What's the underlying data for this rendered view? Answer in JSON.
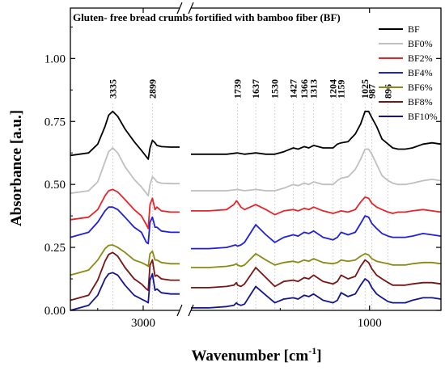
{
  "chart_data": {
    "type": "line",
    "title": "Gluten- free bread crumbs fortified with bamboo fiber (BF)",
    "xlabel": "Wavenumber [cm",
    "xlabel_sup": "-1",
    "xlabel_end": "]",
    "ylabel": "Absorbance [a.u.]",
    "ylim": [
      0,
      1.2
    ],
    "y_ticks": [
      0.0,
      0.25,
      0.5,
      0.75,
      1.0
    ],
    "y_tick_labels": [
      "0.00",
      "0.25",
      "0.50",
      "0.75",
      "1.00"
    ],
    "x_reversed": true,
    "x_segments": [
      [
        3800,
        2600
      ],
      [
        2000,
        600
      ]
    ],
    "x_break_between": [
      2600,
      2000
    ],
    "x_ticks": [
      3000,
      1000
    ],
    "x_tick_labels": [
      "3000",
      "1000"
    ],
    "peaks": [
      {
        "x": 3335,
        "label": "3335"
      },
      {
        "x": 2899,
        "label": "2899"
      },
      {
        "x": 1739,
        "label": "1739"
      },
      {
        "x": 1637,
        "label": "1637"
      },
      {
        "x": 1530,
        "label": "1530"
      },
      {
        "x": 1427,
        "label": "1427"
      },
      {
        "x": 1366,
        "label": "1366"
      },
      {
        "x": 1313,
        "label": "1313"
      },
      {
        "x": 1204,
        "label": "1204"
      },
      {
        "x": 1159,
        "label": "1159"
      },
      {
        "x": 1025,
        "label": "1025"
      },
      {
        "x": 987,
        "label": "987"
      },
      {
        "x": 896,
        "label": "896"
      }
    ],
    "series": [
      {
        "name": "BF",
        "color": "#000000",
        "baseline": 0.62,
        "offset2": 0.625,
        "x": [
          3800,
          3600,
          3500,
          3420,
          3380,
          3335,
          3280,
          3200,
          3100,
          3020,
          2965,
          2945,
          2925,
          2899,
          2870,
          2850,
          2800,
          2700,
          2600,
          2000,
          1900,
          1800,
          1739,
          1700,
          1637,
          1580,
          1530,
          1480,
          1427,
          1400,
          1366,
          1340,
          1313,
          1260,
          1204,
          1180,
          1159,
          1120,
          1080,
          1050,
          1025,
          1005,
          987,
          960,
          930,
          896,
          870,
          840,
          800,
          760,
          700,
          650,
          600
        ],
        "y": [
          0.615,
          0.625,
          0.66,
          0.73,
          0.775,
          0.79,
          0.77,
          0.72,
          0.67,
          0.635,
          0.61,
          0.6,
          0.645,
          0.675,
          0.665,
          0.655,
          0.65,
          0.648,
          0.648,
          0.62,
          0.62,
          0.62,
          0.625,
          0.62,
          0.625,
          0.62,
          0.62,
          0.63,
          0.645,
          0.64,
          0.65,
          0.645,
          0.655,
          0.645,
          0.645,
          0.66,
          0.665,
          0.67,
          0.7,
          0.74,
          0.79,
          0.79,
          0.765,
          0.73,
          0.68,
          0.66,
          0.645,
          0.64,
          0.64,
          0.645,
          0.66,
          0.665,
          0.66
        ]
      },
      {
        "name": "BF0%",
        "color": "#bfbfbf",
        "baseline": 0.47,
        "offset2": 0.475,
        "x": [
          3800,
          3600,
          3500,
          3420,
          3380,
          3335,
          3280,
          3200,
          3100,
          3020,
          2965,
          2945,
          2925,
          2899,
          2870,
          2850,
          2800,
          2700,
          2600,
          2000,
          1900,
          1800,
          1739,
          1700,
          1637,
          1580,
          1530,
          1480,
          1427,
          1400,
          1366,
          1340,
          1313,
          1260,
          1204,
          1180,
          1159,
          1120,
          1080,
          1050,
          1025,
          1005,
          987,
          960,
          930,
          896,
          870,
          840,
          800,
          760,
          700,
          650,
          600
        ],
        "y": [
          0.465,
          0.475,
          0.51,
          0.59,
          0.63,
          0.645,
          0.625,
          0.57,
          0.52,
          0.49,
          0.465,
          0.455,
          0.5,
          0.53,
          0.52,
          0.51,
          0.505,
          0.503,
          0.503,
          0.475,
          0.475,
          0.475,
          0.48,
          0.475,
          0.48,
          0.475,
          0.475,
          0.485,
          0.5,
          0.495,
          0.505,
          0.5,
          0.51,
          0.5,
          0.5,
          0.515,
          0.525,
          0.53,
          0.56,
          0.6,
          0.64,
          0.64,
          0.62,
          0.58,
          0.535,
          0.515,
          0.505,
          0.5,
          0.5,
          0.505,
          0.515,
          0.52,
          0.515
        ]
      },
      {
        "name": "BF2%",
        "color": "#e8242a",
        "baseline": 0.36,
        "offset2": 0.395,
        "x": [
          3800,
          3600,
          3500,
          3420,
          3380,
          3335,
          3280,
          3200,
          3100,
          3020,
          2965,
          2945,
          2925,
          2899,
          2870,
          2850,
          2800,
          2700,
          2600,
          2000,
          1900,
          1800,
          1760,
          1745,
          1739,
          1720,
          1700,
          1637,
          1580,
          1530,
          1480,
          1427,
          1400,
          1366,
          1340,
          1313,
          1260,
          1204,
          1180,
          1159,
          1120,
          1080,
          1050,
          1025,
          1005,
          987,
          960,
          930,
          896,
          870,
          840,
          800,
          760,
          700,
          650,
          600
        ],
        "y": [
          0.36,
          0.37,
          0.4,
          0.455,
          0.475,
          0.48,
          0.47,
          0.44,
          0.4,
          0.375,
          0.34,
          0.325,
          0.42,
          0.445,
          0.4,
          0.41,
          0.395,
          0.39,
          0.39,
          0.395,
          0.395,
          0.4,
          0.42,
          0.435,
          0.43,
          0.41,
          0.4,
          0.42,
          0.4,
          0.38,
          0.395,
          0.4,
          0.395,
          0.405,
          0.4,
          0.41,
          0.395,
          0.385,
          0.39,
          0.395,
          0.39,
          0.4,
          0.43,
          0.45,
          0.445,
          0.425,
          0.41,
          0.4,
          0.39,
          0.385,
          0.39,
          0.39,
          0.395,
          0.4,
          0.395,
          0.39
        ]
      },
      {
        "name": "BF4%",
        "color": "#1f1fe0",
        "baseline": 0.3,
        "offset2": 0.25,
        "x": [
          3800,
          3600,
          3500,
          3420,
          3380,
          3335,
          3280,
          3200,
          3100,
          3020,
          2965,
          2945,
          2925,
          2899,
          2870,
          2850,
          2800,
          2700,
          2600,
          2000,
          1900,
          1800,
          1750,
          1739,
          1720,
          1700,
          1637,
          1580,
          1530,
          1480,
          1427,
          1400,
          1366,
          1340,
          1313,
          1260,
          1204,
          1180,
          1159,
          1120,
          1080,
          1050,
          1025,
          1005,
          987,
          960,
          930,
          896,
          870,
          840,
          800,
          760,
          700,
          650,
          600
        ],
        "y": [
          0.29,
          0.31,
          0.35,
          0.395,
          0.41,
          0.41,
          0.4,
          0.37,
          0.33,
          0.31,
          0.27,
          0.265,
          0.35,
          0.37,
          0.33,
          0.33,
          0.315,
          0.31,
          0.31,
          0.245,
          0.245,
          0.25,
          0.26,
          0.255,
          0.26,
          0.27,
          0.34,
          0.3,
          0.27,
          0.29,
          0.3,
          0.295,
          0.31,
          0.305,
          0.315,
          0.29,
          0.28,
          0.29,
          0.31,
          0.3,
          0.31,
          0.345,
          0.375,
          0.37,
          0.345,
          0.325,
          0.305,
          0.295,
          0.29,
          0.29,
          0.29,
          0.295,
          0.305,
          0.3,
          0.295
        ]
      },
      {
        "name": "BF6%",
        "color": "#8a8a12",
        "baseline": 0.15,
        "offset2": 0.175,
        "x": [
          3800,
          3600,
          3500,
          3420,
          3380,
          3335,
          3280,
          3200,
          3100,
          3020,
          2965,
          2945,
          2925,
          2899,
          2870,
          2850,
          2800,
          2700,
          2600,
          2000,
          1900,
          1800,
          1760,
          1745,
          1739,
          1720,
          1700,
          1637,
          1580,
          1530,
          1480,
          1427,
          1400,
          1366,
          1340,
          1313,
          1260,
          1204,
          1180,
          1159,
          1120,
          1080,
          1050,
          1025,
          1005,
          987,
          960,
          930,
          896,
          870,
          840,
          800,
          760,
          700,
          650,
          600
        ],
        "y": [
          0.14,
          0.16,
          0.2,
          0.245,
          0.258,
          0.26,
          0.25,
          0.23,
          0.2,
          0.19,
          0.18,
          0.175,
          0.225,
          0.235,
          0.2,
          0.2,
          0.19,
          0.185,
          0.185,
          0.17,
          0.17,
          0.175,
          0.18,
          0.185,
          0.18,
          0.175,
          0.18,
          0.225,
          0.2,
          0.18,
          0.19,
          0.195,
          0.19,
          0.2,
          0.195,
          0.205,
          0.19,
          0.185,
          0.19,
          0.2,
          0.195,
          0.2,
          0.215,
          0.225,
          0.22,
          0.205,
          0.195,
          0.19,
          0.185,
          0.18,
          0.18,
          0.18,
          0.185,
          0.19,
          0.19,
          0.185
        ]
      },
      {
        "name": "BF8%",
        "color": "#7a1414",
        "baseline": 0.05,
        "offset2": 0.1,
        "x": [
          3800,
          3600,
          3500,
          3420,
          3380,
          3335,
          3280,
          3200,
          3100,
          3020,
          2965,
          2945,
          2925,
          2899,
          2870,
          2850,
          2800,
          2700,
          2600,
          2000,
          1900,
          1800,
          1760,
          1745,
          1739,
          1720,
          1700,
          1637,
          1580,
          1530,
          1480,
          1427,
          1400,
          1366,
          1340,
          1313,
          1260,
          1204,
          1180,
          1159,
          1120,
          1080,
          1050,
          1025,
          1005,
          987,
          960,
          930,
          896,
          870,
          840,
          800,
          760,
          700,
          650,
          600
        ],
        "y": [
          0.04,
          0.06,
          0.12,
          0.195,
          0.222,
          0.23,
          0.215,
          0.17,
          0.125,
          0.105,
          0.085,
          0.08,
          0.18,
          0.2,
          0.135,
          0.14,
          0.125,
          0.12,
          0.12,
          0.09,
          0.09,
          0.095,
          0.1,
          0.11,
          0.1,
          0.095,
          0.105,
          0.17,
          0.13,
          0.095,
          0.115,
          0.12,
          0.115,
          0.13,
          0.125,
          0.14,
          0.115,
          0.105,
          0.115,
          0.14,
          0.125,
          0.135,
          0.175,
          0.2,
          0.19,
          0.165,
          0.14,
          0.125,
          0.11,
          0.1,
          0.1,
          0.1,
          0.105,
          0.11,
          0.11,
          0.105
        ]
      },
      {
        "name": "BF10%",
        "color": "#141490",
        "baseline": 0.01,
        "offset2": 0.02,
        "x": [
          3800,
          3600,
          3500,
          3420,
          3380,
          3335,
          3280,
          3200,
          3100,
          3020,
          2965,
          2945,
          2925,
          2899,
          2870,
          2850,
          2800,
          2700,
          2600,
          2000,
          1900,
          1800,
          1760,
          1745,
          1739,
          1720,
          1700,
          1637,
          1580,
          1530,
          1480,
          1427,
          1400,
          1366,
          1340,
          1313,
          1260,
          1204,
          1180,
          1159,
          1120,
          1080,
          1050,
          1025,
          1005,
          987,
          960,
          930,
          896,
          870,
          840,
          800,
          760,
          700,
          650,
          600
        ],
        "y": [
          0.0,
          0.02,
          0.06,
          0.125,
          0.145,
          0.15,
          0.14,
          0.1,
          0.06,
          0.045,
          0.035,
          0.03,
          0.12,
          0.145,
          0.08,
          0.085,
          0.07,
          0.065,
          0.065,
          0.01,
          0.01,
          0.015,
          0.02,
          0.03,
          0.025,
          0.02,
          0.025,
          0.095,
          0.06,
          0.03,
          0.045,
          0.05,
          0.045,
          0.06,
          0.055,
          0.065,
          0.04,
          0.03,
          0.04,
          0.07,
          0.055,
          0.065,
          0.1,
          0.125,
          0.115,
          0.09,
          0.065,
          0.05,
          0.035,
          0.03,
          0.03,
          0.03,
          0.04,
          0.05,
          0.05,
          0.045
        ]
      }
    ],
    "legend": {
      "position": "top-right"
    },
    "grid": false
  }
}
